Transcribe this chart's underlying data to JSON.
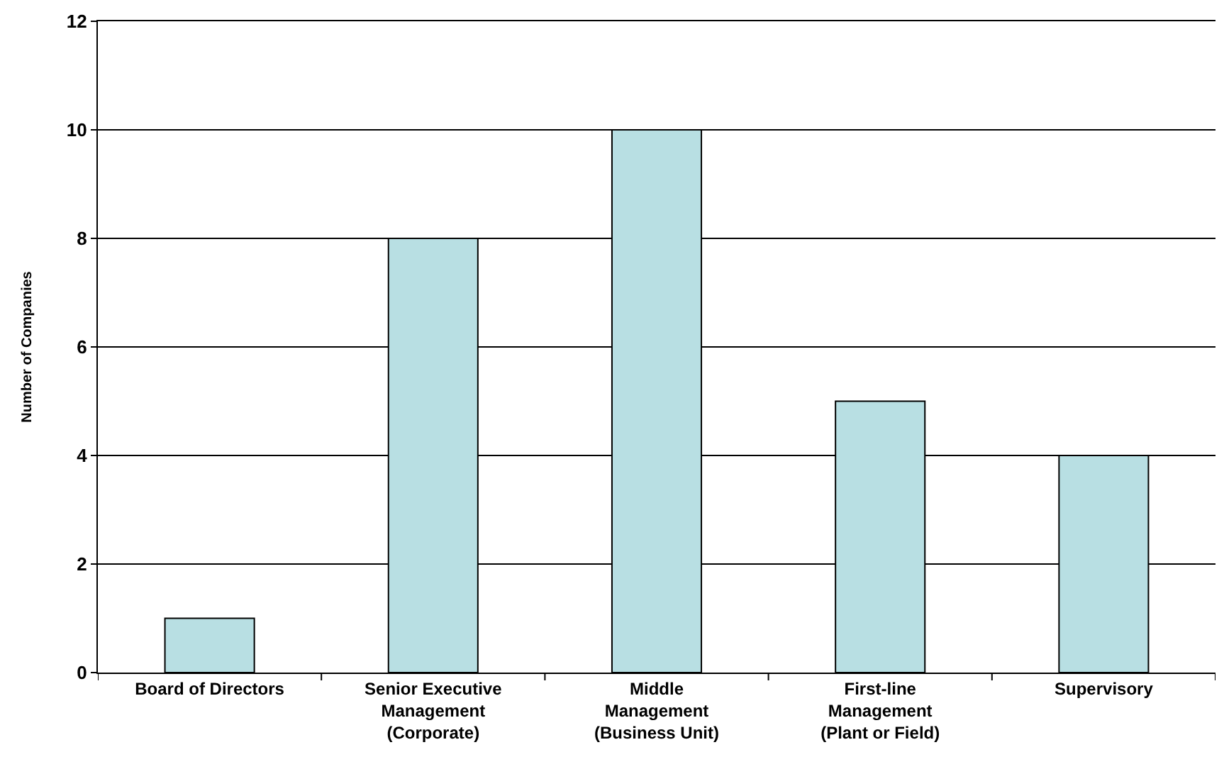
{
  "chart_data": {
    "type": "bar",
    "categories": [
      "Board of Directors",
      "Senior Executive Management (Corporate)",
      "Middle Management (Business Unit)",
      "First-line Management (Plant or Field)",
      "Supervisory"
    ],
    "values": [
      1,
      8,
      10,
      5,
      4
    ],
    "color": "#b8dfe3",
    "ylabel": "Number of Companies",
    "ylim": [
      0,
      12
    ],
    "yticks": [
      0,
      2,
      4,
      6,
      8,
      10,
      12
    ],
    "grid": "y"
  }
}
